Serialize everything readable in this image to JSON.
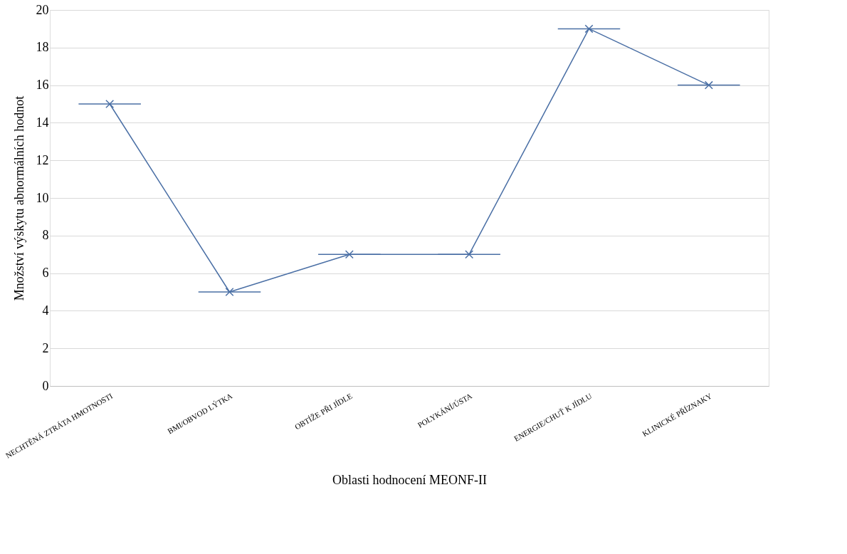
{
  "chart_data": {
    "type": "line",
    "categories": [
      "NECHTĚNÁ ZTRÁTA HMOTNOSTI",
      "BMI/OBVOD LÝTKA",
      "OBTÍŽE PŘI JÍDLE",
      "POLYKÁNÍ/ÚSTA",
      "ENERGIE/CHUŤ K JÍDLU",
      "KLINICKÉ PŘÍZNAKY"
    ],
    "series": [
      {
        "color": "#4a6fa5",
        "values": [
          15,
          5,
          7,
          7,
          19,
          16
        ]
      }
    ],
    "xlabel": "Oblasti hodnocení MEONF-II",
    "ylabel": "Množství výskytu abnormálních hodnot",
    "ylim": [
      0,
      20
    ],
    "yticks": [
      0,
      2,
      4,
      6,
      8,
      10,
      12,
      14,
      16,
      18,
      20
    ],
    "grid": "y",
    "marker": "cross",
    "line_style": "solid"
  }
}
